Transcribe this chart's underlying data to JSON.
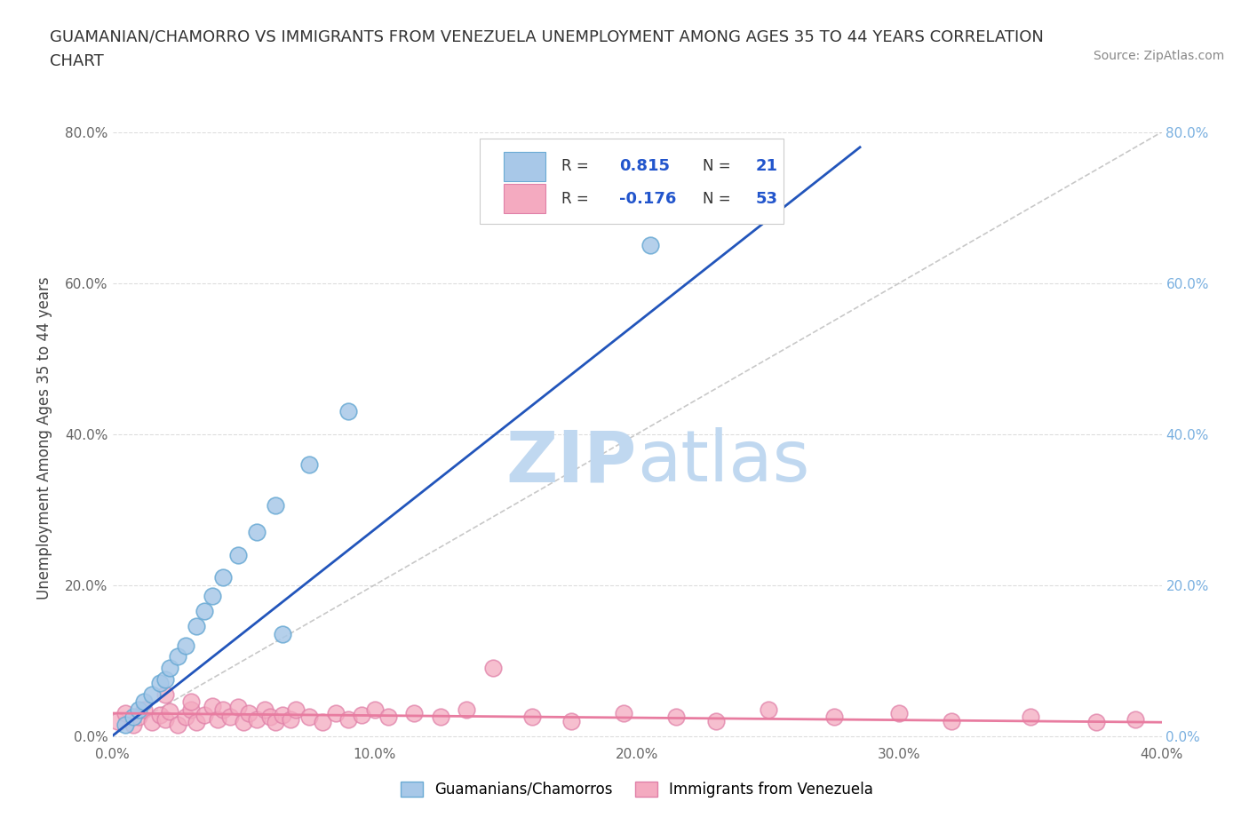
{
  "title_line1": "GUAMANIAN/CHAMORRO VS IMMIGRANTS FROM VENEZUELA UNEMPLOYMENT AMONG AGES 35 TO 44 YEARS CORRELATION",
  "title_line2": "CHART",
  "source": "Source: ZipAtlas.com",
  "ylabel": "Unemployment Among Ages 35 to 44 years",
  "xlim": [
    0.0,
    0.4
  ],
  "ylim": [
    -0.01,
    0.8
  ],
  "xtick_labels": [
    "0.0%",
    "10.0%",
    "20.0%",
    "30.0%",
    "40.0%"
  ],
  "xtick_vals": [
    0.0,
    0.1,
    0.2,
    0.3,
    0.4
  ],
  "ytick_labels": [
    "0.0%",
    "20.0%",
    "40.0%",
    "60.0%",
    "80.0%"
  ],
  "ytick_vals": [
    0.0,
    0.2,
    0.4,
    0.6,
    0.8
  ],
  "blue_R": 0.815,
  "blue_N": 21,
  "pink_R": -0.176,
  "pink_N": 53,
  "blue_color": "#a8c8e8",
  "blue_edge": "#6aaad4",
  "pink_color": "#f4aac0",
  "pink_edge": "#e080a8",
  "blue_line_color": "#2255bb",
  "pink_line_color": "#e87ca0",
  "ref_line_color": "#bbbbbb",
  "watermark_zip_color": "#c0d8f0",
  "watermark_atlas_color": "#c0d8f0",
  "legend_R_color": "#2255cc",
  "legend_N_color": "#2255cc",
  "background_color": "#ffffff",
  "grid_color": "#dddddd",
  "blue_scatter_x": [
    0.005,
    0.008,
    0.01,
    0.012,
    0.015,
    0.018,
    0.02,
    0.022,
    0.025,
    0.028,
    0.032,
    0.035,
    0.038,
    0.042,
    0.048,
    0.055,
    0.062,
    0.075,
    0.09,
    0.205,
    0.065
  ],
  "blue_scatter_y": [
    0.015,
    0.025,
    0.035,
    0.045,
    0.055,
    0.07,
    0.075,
    0.09,
    0.105,
    0.12,
    0.145,
    0.165,
    0.185,
    0.21,
    0.24,
    0.27,
    0.305,
    0.36,
    0.43,
    0.65,
    0.135
  ],
  "pink_scatter_x": [
    0.002,
    0.005,
    0.008,
    0.01,
    0.012,
    0.015,
    0.018,
    0.02,
    0.022,
    0.025,
    0.028,
    0.03,
    0.032,
    0.035,
    0.038,
    0.04,
    0.042,
    0.045,
    0.048,
    0.05,
    0.052,
    0.055,
    0.058,
    0.06,
    0.062,
    0.065,
    0.068,
    0.07,
    0.075,
    0.08,
    0.085,
    0.09,
    0.095,
    0.1,
    0.105,
    0.115,
    0.125,
    0.135,
    0.145,
    0.16,
    0.175,
    0.195,
    0.215,
    0.23,
    0.25,
    0.275,
    0.3,
    0.32,
    0.35,
    0.375,
    0.39,
    0.02,
    0.03
  ],
  "pink_scatter_y": [
    0.02,
    0.03,
    0.015,
    0.025,
    0.035,
    0.018,
    0.028,
    0.022,
    0.032,
    0.015,
    0.025,
    0.035,
    0.018,
    0.028,
    0.04,
    0.022,
    0.035,
    0.025,
    0.038,
    0.018,
    0.03,
    0.022,
    0.035,
    0.025,
    0.018,
    0.028,
    0.022,
    0.035,
    0.025,
    0.018,
    0.03,
    0.022,
    0.028,
    0.035,
    0.025,
    0.03,
    0.025,
    0.035,
    0.09,
    0.025,
    0.02,
    0.03,
    0.025,
    0.02,
    0.035,
    0.025,
    0.03,
    0.02,
    0.025,
    0.018,
    0.022,
    0.055,
    0.045
  ],
  "blue_trend_x": [
    0.0,
    0.285
  ],
  "blue_trend_y": [
    0.0,
    0.78
  ],
  "pink_trend_x": [
    0.0,
    0.4
  ],
  "pink_trend_y": [
    0.03,
    0.018
  ],
  "ref_line_x": [
    0.0,
    0.4
  ],
  "ref_line_y": [
    0.0,
    0.8
  ]
}
